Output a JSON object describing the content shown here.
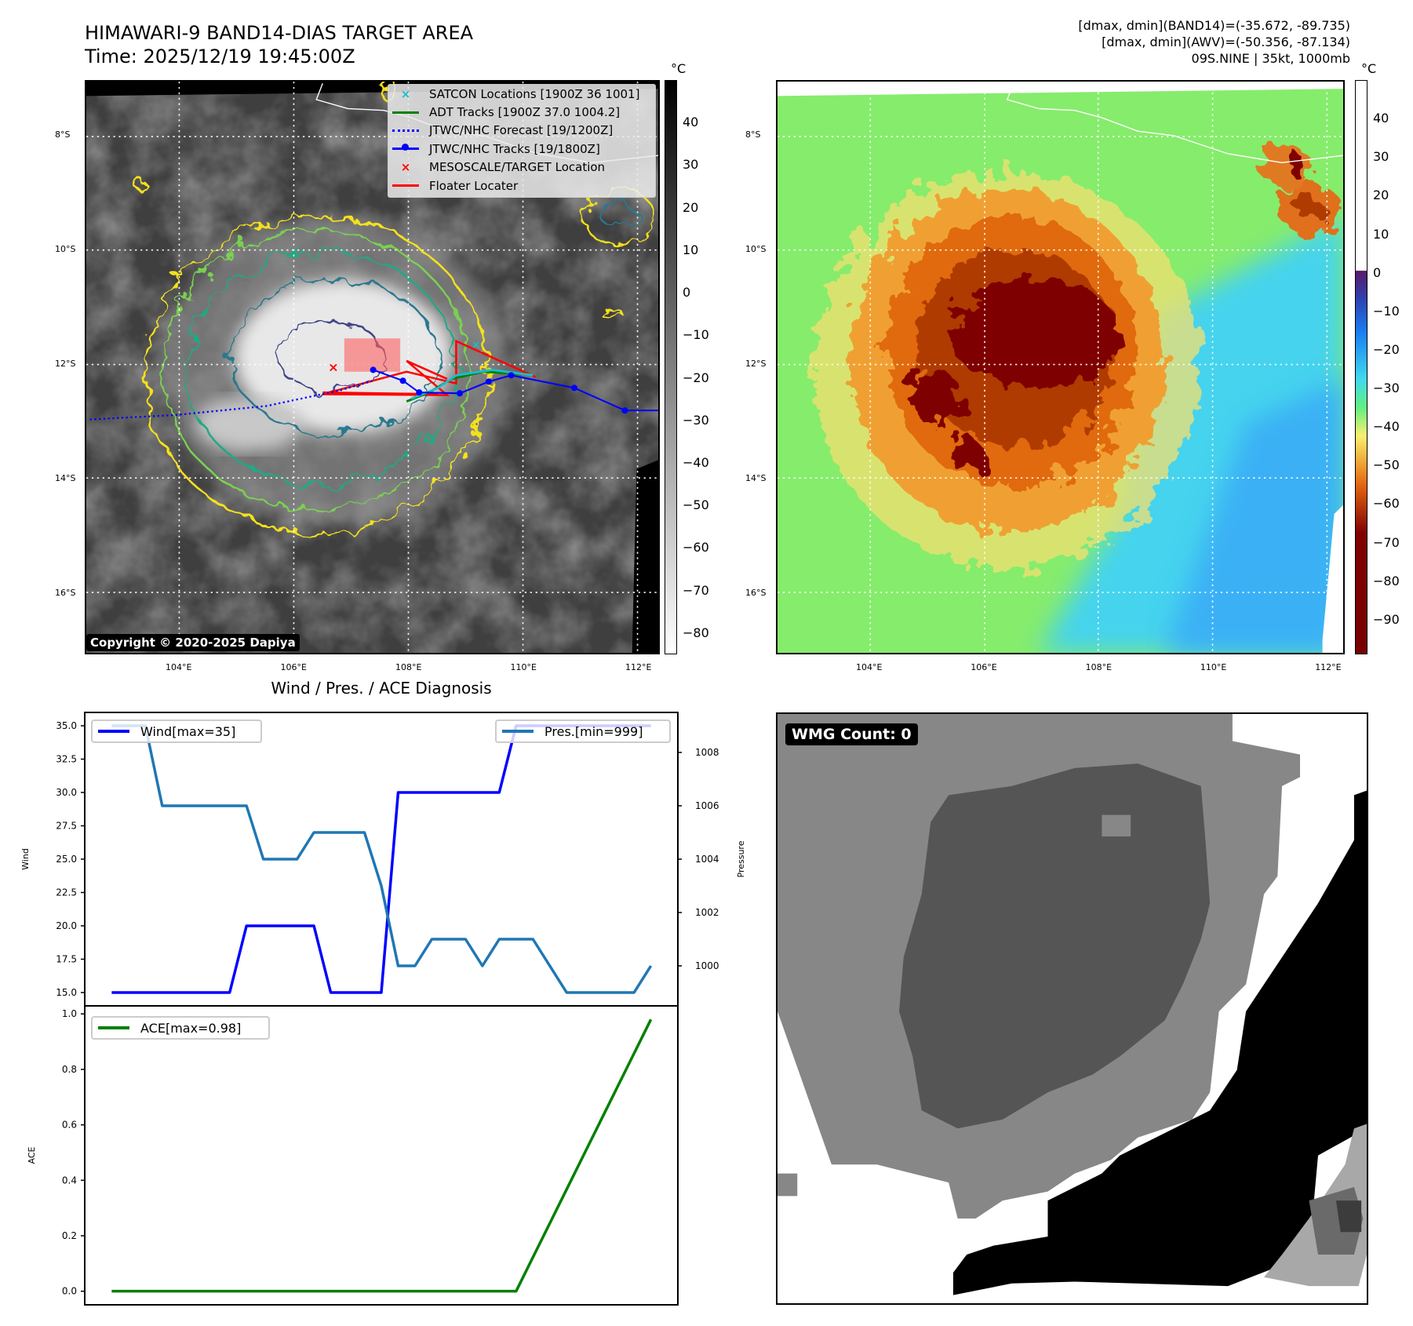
{
  "header": {
    "title": "HIMAWARI-9 BAND14-DIAS TARGET AREA",
    "time": "Time: 2025/12/19 19:45:00Z"
  },
  "info": {
    "line1": "[dmax, dmin](BAND14)=(-35.672, -89.735)",
    "line2": "[dmax, dmin](AWV)=(-50.356, -87.134)",
    "line3": "09S.NINE | 35kt, 1000mb"
  },
  "axes": {
    "lat_labels": [
      "8°S",
      "10°S",
      "12°S",
      "14°S",
      "16°S"
    ],
    "lon_labels": [
      "104°E",
      "106°E",
      "108°E",
      "110°E",
      "112°E"
    ]
  },
  "map_left": {
    "legend": [
      {
        "label": "SATCON Locations [1900Z 36 1001]",
        "icon": "x-marker",
        "color": "#17becf"
      },
      {
        "label": "ADT Tracks [1900Z 37.0 1004.2]",
        "icon": "line",
        "color": "#008000"
      },
      {
        "label": "JTWC/NHC Forecast [19/1200Z]",
        "icon": "dotted-line",
        "color": "#0000ff"
      },
      {
        "label": "JTWC/NHC Tracks [19/1800Z]",
        "icon": "line-dot",
        "color": "#0000ff"
      },
      {
        "label": "MESOSCALE/TARGET Location",
        "icon": "x-marker",
        "color": "#ff0000"
      },
      {
        "label": "Floater Locater",
        "icon": "line",
        "color": "#ff0000"
      }
    ],
    "copyright": "Copyright © 2020-2025 Dapiya",
    "colorbar": {
      "unit": "°C",
      "ticks": [
        "40",
        "30",
        "20",
        "10",
        "0",
        "−10",
        "−20",
        "−30",
        "−40",
        "−50",
        "−60",
        "−70",
        "−80"
      ]
    }
  },
  "map_right": {
    "colorbar": {
      "unit": "°C",
      "ticks": [
        "40",
        "30",
        "20",
        "10",
        "0",
        "−10",
        "−20",
        "−30",
        "−40",
        "−50",
        "−60",
        "−70",
        "−80",
        "−90"
      ]
    }
  },
  "chart_data": {
    "type": "line",
    "title": "Wind / Pres. / ACE Diagnosis",
    "x": [
      0,
      1,
      2,
      3,
      4,
      5,
      6,
      7,
      8,
      9,
      10,
      11,
      12,
      13,
      14,
      15,
      16,
      17,
      18,
      19,
      20,
      21,
      22,
      23,
      24,
      25,
      26,
      27,
      28,
      29,
      30,
      31,
      32
    ],
    "series": [
      {
        "name": "Wind[max=35]",
        "axis": "Wind",
        "color": "#0000ff",
        "values": [
          15,
          15,
          15,
          15,
          15,
          15,
          15,
          15,
          20,
          20,
          20,
          20,
          20,
          15,
          15,
          15,
          15,
          30,
          30,
          30,
          30,
          30,
          30,
          30,
          35,
          35,
          35,
          35,
          35,
          35,
          35,
          35,
          35
        ]
      },
      {
        "name": "Pres.[min=999]",
        "axis": "Pressure",
        "color": "#1f77b4",
        "values": [
          1009,
          1009,
          1009,
          1006,
          1006,
          1006,
          1006,
          1006,
          1006,
          1004,
          1004,
          1004,
          1005,
          1005,
          1005,
          1005,
          1003,
          1000,
          1000,
          1001,
          1001,
          1001,
          1000,
          1001,
          1001,
          1001,
          1000,
          999,
          999,
          999,
          999,
          999,
          1000
        ]
      },
      {
        "name": "ACE[max=0.98]",
        "axis": "ACE",
        "color": "#008000",
        "values": [
          0,
          0,
          0,
          0,
          0,
          0,
          0,
          0,
          0,
          0,
          0,
          0,
          0,
          0,
          0,
          0,
          0,
          0,
          0,
          0,
          0,
          0,
          0,
          0,
          0,
          0.1225,
          0.245,
          0.3675,
          0.49,
          0.6125,
          0.735,
          0.8575,
          0.98
        ]
      }
    ],
    "wind_axis": {
      "label": "Wind",
      "ylim": [
        14,
        36
      ],
      "ticks": [
        "15.0",
        "17.5",
        "20.0",
        "22.5",
        "25.0",
        "27.5",
        "30.0",
        "32.5",
        "35.0"
      ]
    },
    "pressure_axis": {
      "label": "Pressure",
      "ylim": [
        998.5,
        1009.5
      ],
      "ticks": [
        "1000",
        "1002",
        "1004",
        "1006",
        "1008"
      ]
    },
    "ace_axis": {
      "label": "ACE",
      "ylim": [
        -0.049,
        1.029
      ],
      "ticks": [
        "0.0",
        "0.2",
        "0.4",
        "0.6",
        "0.8",
        "1.0"
      ]
    },
    "xlim": [
      -1.6,
      33.6
    ],
    "legend_placement": {
      "wind": "top-left",
      "pressure": "top-right",
      "ace": "top-left"
    }
  },
  "wmg": {
    "label": "WMG Count: 0"
  }
}
